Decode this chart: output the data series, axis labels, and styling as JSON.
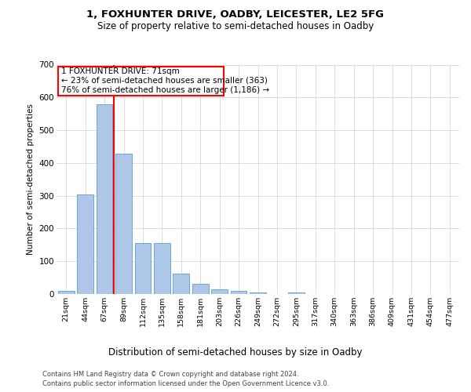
{
  "title_line1": "1, FOXHUNTER DRIVE, OADBY, LEICESTER, LE2 5FG",
  "title_line2": "Size of property relative to semi-detached houses in Oadby",
  "xlabel": "Distribution of semi-detached houses by size in Oadby",
  "ylabel": "Number of semi-detached properties",
  "bar_color": "#aec6e8",
  "bar_edge_color": "#5a9fd4",
  "categories": [
    "21sqm",
    "44sqm",
    "67sqm",
    "89sqm",
    "112sqm",
    "135sqm",
    "158sqm",
    "181sqm",
    "203sqm",
    "226sqm",
    "249sqm",
    "272sqm",
    "295sqm",
    "317sqm",
    "340sqm",
    "363sqm",
    "386sqm",
    "409sqm",
    "431sqm",
    "454sqm",
    "477sqm"
  ],
  "values": [
    10,
    303,
    580,
    428,
    155,
    155,
    63,
    30,
    14,
    10,
    5,
    0,
    5,
    0,
    0,
    0,
    0,
    0,
    0,
    0,
    0
  ],
  "ylim": [
    0,
    700
  ],
  "yticks": [
    0,
    100,
    200,
    300,
    400,
    500,
    600,
    700
  ],
  "property_bin_index": 2,
  "annotation_line1": "1 FOXHUNTER DRIVE: 71sqm",
  "annotation_line2": "← 23% of semi-detached houses are smaller (363)",
  "annotation_line3": "76% of semi-detached houses are larger (1,186) →",
  "footer_line1": "Contains HM Land Registry data © Crown copyright and database right 2024.",
  "footer_line2": "Contains public sector information licensed under the Open Government Licence v3.0.",
  "background_color": "#ffffff",
  "grid_color": "#d0d0d0"
}
